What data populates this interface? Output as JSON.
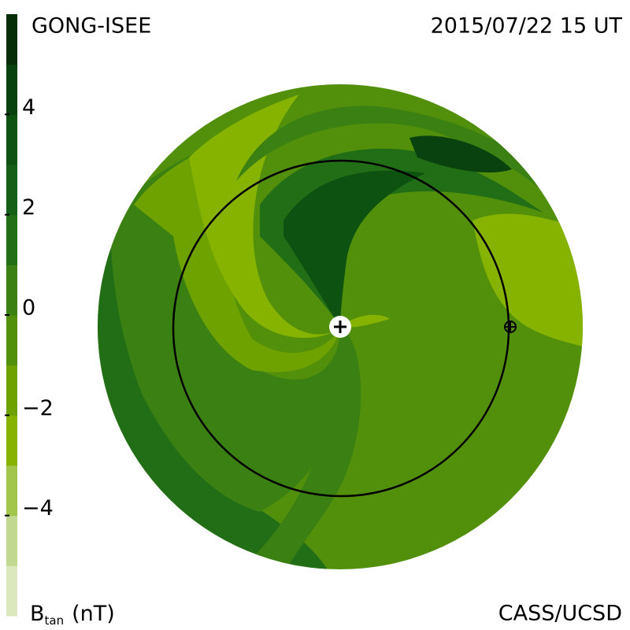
{
  "header": {
    "source": "GONG-ISEE",
    "timestamp": "2015/07/22 15 UT"
  },
  "footer": {
    "credit": "CASS/UCSD"
  },
  "colorbar": {
    "symbol": "B",
    "subscript": "tan",
    "unit": "(nT)",
    "lim": [
      -6,
      6
    ],
    "ticks": [
      {
        "value": 4,
        "label": "4"
      },
      {
        "value": 2,
        "label": "2"
      },
      {
        "value": 0,
        "label": "0"
      },
      {
        "value": -2,
        "label": "−2"
      },
      {
        "value": -4,
        "label": "−4"
      }
    ],
    "colors": [
      "#dbe7bd",
      "#c0d890",
      "#a2c64c",
      "#86b300",
      "#6ea200",
      "#52900c",
      "#3a8012",
      "#226e16",
      "#156016",
      "#0e5212",
      "#09420e",
      "#062c08"
    ]
  }
}
